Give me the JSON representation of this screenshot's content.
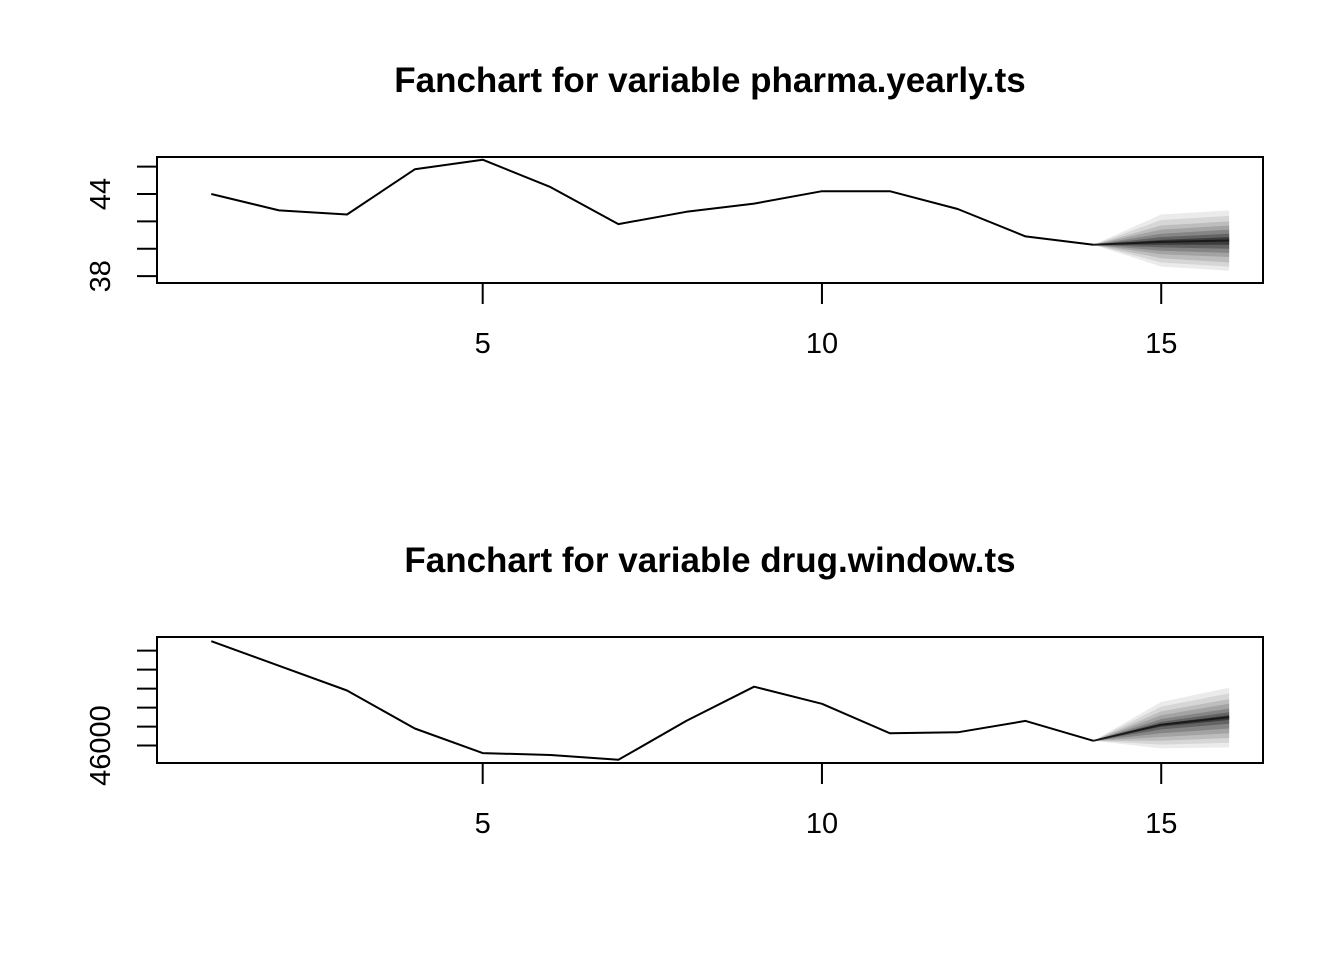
{
  "chart_data": [
    {
      "type": "line",
      "title": "Fanchart for variable pharma.yearly.ts",
      "xlabel": "",
      "ylabel": "",
      "xlim": [
        0.2,
        16.5
      ],
      "ylim": [
        37.5,
        46.7
      ],
      "x_ticks": [
        5,
        10,
        15
      ],
      "x_tick_labels": [
        "5",
        "10",
        "15"
      ],
      "y_ticks": [
        38,
        40,
        42,
        44,
        46
      ],
      "y_tick_labels": [
        "38",
        "",
        "",
        "44",
        ""
      ],
      "grid": false,
      "series": [
        {
          "x": [
            1,
            2,
            3,
            4,
            5,
            6,
            7,
            8,
            9,
            10,
            11,
            12,
            13,
            14
          ],
          "values": [
            44.0,
            42.8,
            42.5,
            45.8,
            46.5,
            44.5,
            41.8,
            42.7,
            43.3,
            44.2,
            44.2,
            42.9,
            40.9,
            40.3
          ]
        }
      ],
      "fan": {
        "color": "#000000",
        "x": [
          14,
          15,
          16
        ],
        "center": [
          40.3,
          40.5,
          40.6
        ],
        "bands": [
          {
            "lower": [
              40.3,
              38.7,
              38.4
            ],
            "upper": [
              40.3,
              42.5,
              42.8
            ]
          },
          {
            "lower": [
              40.3,
              39.0,
              38.7
            ],
            "upper": [
              40.3,
              42.1,
              42.4
            ]
          },
          {
            "lower": [
              40.3,
              39.3,
              39.0
            ],
            "upper": [
              40.3,
              41.7,
              42.0
            ]
          },
          {
            "lower": [
              40.3,
              39.6,
              39.4
            ],
            "upper": [
              40.3,
              41.4,
              41.7
            ]
          },
          {
            "lower": [
              40.3,
              39.85,
              39.7
            ],
            "upper": [
              40.3,
              41.1,
              41.4
            ]
          },
          {
            "lower": [
              40.3,
              40.1,
              40.0
            ],
            "upper": [
              40.3,
              40.85,
              41.1
            ]
          },
          {
            "lower": [
              40.3,
              40.3,
              40.3
            ],
            "upper": [
              40.3,
              40.65,
              40.85
            ]
          }
        ]
      }
    },
    {
      "type": "line",
      "title": "Fanchart for variable drug.window.ts",
      "xlabel": "",
      "ylabel": "",
      "xlim": [
        0.2,
        16.5
      ],
      "ylim": [
        45080,
        51720
      ],
      "x_ticks": [
        5,
        10,
        15
      ],
      "x_tick_labels": [
        "5",
        "10",
        "15"
      ],
      "y_ticks": [
        46000,
        47000,
        48000,
        49000,
        50000,
        51000
      ],
      "y_tick_labels": [
        "46000",
        "",
        "",
        "",
        "",
        ""
      ],
      "grid": false,
      "series": [
        {
          "x": [
            1,
            2,
            3,
            4,
            5,
            6,
            7,
            8,
            9,
            10,
            11,
            12,
            13,
            14
          ],
          "values": [
            51500,
            50200,
            48900,
            46900,
            45600,
            45500,
            45250,
            47300,
            49100,
            48200,
            46650,
            46700,
            47300,
            46250
          ]
        }
      ],
      "fan": {
        "color": "#000000",
        "x": [
          14,
          15,
          16
        ],
        "center": [
          46250,
          47100,
          47500
        ],
        "bands": [
          {
            "lower": [
              46250,
              45850,
              45900
            ],
            "upper": [
              46250,
              48300,
              49050
            ]
          },
          {
            "lower": [
              46250,
              46050,
              46150
            ],
            "upper": [
              46250,
              48050,
              48750
            ]
          },
          {
            "lower": [
              46250,
              46250,
              46400
            ],
            "upper": [
              46250,
              47800,
              48450
            ]
          },
          {
            "lower": [
              46250,
              46450,
              46650
            ],
            "upper": [
              46250,
              47600,
              48200
            ]
          },
          {
            "lower": [
              46250,
              46650,
              46900
            ],
            "upper": [
              46250,
              47400,
              47950
            ]
          },
          {
            "lower": [
              46250,
              46850,
              47150
            ],
            "upper": [
              46250,
              47250,
              47750
            ]
          },
          {
            "lower": [
              46250,
              47000,
              47350
            ],
            "upper": [
              46250,
              47150,
              47600
            ]
          }
        ]
      }
    }
  ]
}
